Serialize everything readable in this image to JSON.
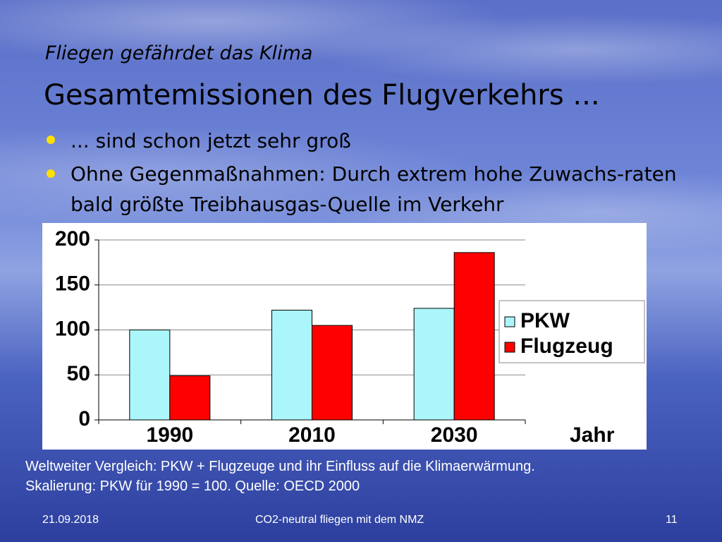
{
  "slide": {
    "subtitle": "Fliegen gefährdet das Klima",
    "title": "Gesamtemissionen des Flugverkehrs ...",
    "bullets": [
      "... sind schon jetzt sehr groß",
      "Ohne Gegenmaßnahmen: Durch extrem hohe Zuwachs-raten bald größte Treibhausgas-Quelle im Verkehr"
    ],
    "caption": [
      "Weltweiter Vergleich: PKW + Flugzeuge und ihr Einfluss auf die Klimaerwärmung.",
      "Skalierung: PKW für 1990 = 100. Quelle: OECD 2000"
    ],
    "footer": {
      "date": "21.09.2018",
      "center": "CO2-neutral fliegen mit dem NMZ",
      "page": "11"
    }
  },
  "chart_data": {
    "type": "bar",
    "x_label": "Jahr",
    "categories": [
      "1990",
      "2010",
      "2030"
    ],
    "series": [
      {
        "name": "PKW",
        "color": "#aaf6fa",
        "values": [
          100,
          122,
          124
        ]
      },
      {
        "name": "Flugzeug",
        "color": "#ff0000",
        "values": [
          49,
          105,
          186
        ]
      }
    ],
    "ylim": [
      0,
      200
    ],
    "yticks": [
      0,
      50,
      100,
      150,
      200
    ],
    "grid": true,
    "legend": "right"
  }
}
